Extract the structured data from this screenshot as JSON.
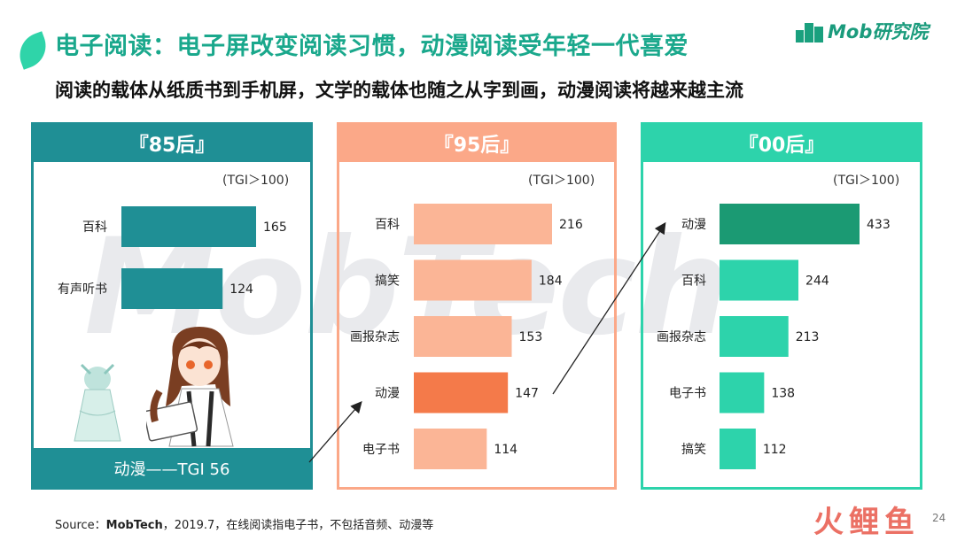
{
  "header": {
    "title": "电子阅读：电子屏改变阅读习惯，动漫阅读受年轻一代喜爱",
    "subtitle": "阅读的载体从纸质书到手机屏，文学的载体也随之从字到画，动漫阅读将越来越主流",
    "logo_text": "Mob研究院"
  },
  "watermark": "MobTech",
  "colors": {
    "title": "#1aa88c",
    "panel_85": "#1f8f95",
    "panel_95": "#fba888",
    "panel_00": "#2dd3ab",
    "highlight_95": "#f47a4a",
    "highlight_00": "#1b9a73"
  },
  "chart_data": [
    {
      "type": "bar",
      "orientation": "horizontal",
      "title": "『85后』",
      "note": "(TGI＞100)",
      "categories": [
        "百科",
        "有声听书"
      ],
      "values": [
        165,
        124
      ],
      "highlight": null,
      "bar_color": "#1f8f95",
      "extra_band": "动漫——TGI 56"
    },
    {
      "type": "bar",
      "orientation": "horizontal",
      "title": "『95后』",
      "note": "(TGI＞100)",
      "categories": [
        "百科",
        "搞笑",
        "画报杂志",
        "动漫",
        "电子书"
      ],
      "values": [
        216,
        184,
        153,
        147,
        114
      ],
      "highlight": "动漫",
      "bar_color": "#fbb596"
    },
    {
      "type": "bar",
      "orientation": "horizontal",
      "title": "『00后』",
      "note": "(TGI＞100)",
      "categories": [
        "动漫",
        "百科",
        "画报杂志",
        "电子书",
        "搞笑"
      ],
      "values": [
        433,
        244,
        213,
        138,
        112
      ],
      "highlight": "动漫",
      "bar_color": "#2dd3ab"
    }
  ],
  "footer": {
    "source_prefix": "Source：",
    "source_name": "MobTech",
    "source_rest": "，2019.7，在线阅读指电子书，不包括音频、动漫等",
    "page_number": "24",
    "brand_mark": "火鲤鱼"
  }
}
